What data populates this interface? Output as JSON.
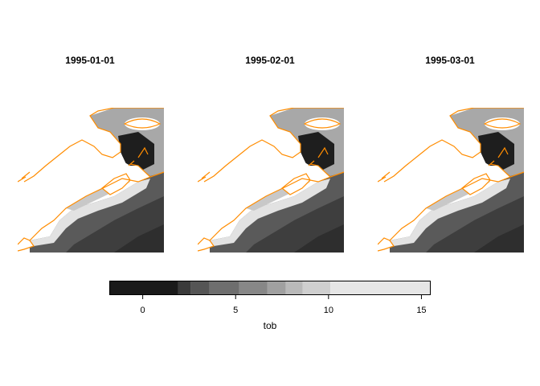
{
  "panels": [
    {
      "title": "1995-01-01"
    },
    {
      "title": "1995-02-01"
    },
    {
      "title": "1995-03-01"
    }
  ],
  "legend": {
    "title": "tob",
    "min": -1.8,
    "max": 15.5,
    "ticks": [
      {
        "value": 0,
        "label": "0"
      },
      {
        "value": 5,
        "label": "5"
      },
      {
        "value": 10,
        "label": "10"
      },
      {
        "value": 15,
        "label": "15"
      }
    ],
    "breaks": [
      -1.8,
      1.9,
      2.6,
      3.6,
      5.2,
      6.7,
      7.7,
      8.6,
      10.1,
      15.5
    ],
    "colors": [
      "#1a1a1a",
      "#3a3a3a",
      "#555555",
      "#6e6e6e",
      "#878787",
      "#a0a0a0",
      "#b9b9b9",
      "#cfcfcf",
      "#e6e6e6"
    ]
  },
  "map_colors": {
    "coastline": "#ff8c00",
    "land": "#ffffff",
    "deep_dark": "#2e2e2e",
    "shelf_light": "#e2e2e2"
  }
}
